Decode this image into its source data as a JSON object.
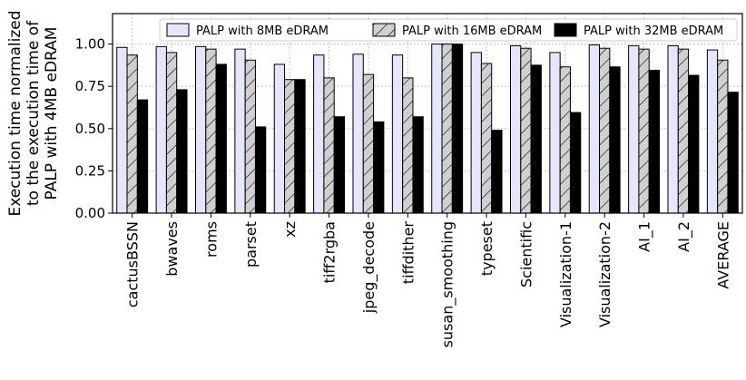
{
  "chart_data": {
    "type": "bar",
    "ylabel": "Execution time normalized to the execution time of PALP with 4MB eDRAM",
    "ylabel_lines": [
      "Execution time normalized",
      "to the execution time of",
      "PALP with 4MB eDRAM"
    ],
    "xlabel": "",
    "ylim": [
      0,
      1.18
    ],
    "yticks": [
      0.0,
      0.25,
      0.5,
      0.75,
      1.0
    ],
    "ytick_labels": [
      "0.00",
      "0.25",
      "0.50",
      "0.75",
      "1.00"
    ],
    "grid": true,
    "legend_position": "top",
    "categories": [
      "cactusBSSN",
      "bwaves",
      "roms",
      "parset",
      "xz",
      "tiff2rgba",
      "jpeg_decode",
      "tiffdither",
      "susan_smoothing",
      "typeset",
      "Scientific",
      "Visualization-1",
      "Visualization-2",
      "AI_1",
      "AI_2",
      "AVERAGE"
    ],
    "series": [
      {
        "name": "PALP with 8MB eDRAM",
        "fill": "#e6e6fa",
        "pattern": "none",
        "values": [
          0.98,
          0.985,
          0.985,
          0.97,
          0.88,
          0.935,
          0.94,
          0.935,
          1.0,
          0.95,
          0.99,
          0.95,
          0.995,
          0.99,
          0.99,
          0.965
        ]
      },
      {
        "name": "PALP with 16MB eDRAM",
        "fill": "#d0d0d0",
        "pattern": "hatch",
        "values": [
          0.935,
          0.95,
          0.97,
          0.905,
          0.79,
          0.8,
          0.82,
          0.8,
          1.0,
          0.885,
          0.975,
          0.865,
          0.975,
          0.97,
          0.97,
          0.905
        ]
      },
      {
        "name": "PALP with 32MB eDRAM",
        "fill": "#000000",
        "pattern": "none",
        "values": [
          0.67,
          0.73,
          0.88,
          0.51,
          0.79,
          0.57,
          0.54,
          0.57,
          1.0,
          0.49,
          0.875,
          0.595,
          0.865,
          0.845,
          0.815,
          0.715
        ]
      }
    ]
  }
}
